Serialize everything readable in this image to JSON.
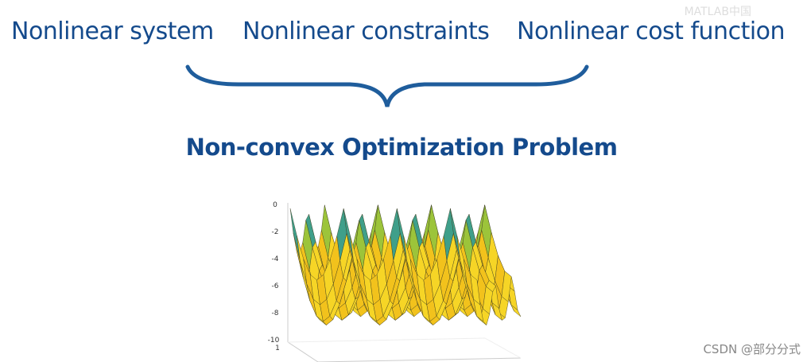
{
  "slide": {
    "terms": [
      "Nonlinear system",
      "Nonlinear constraints",
      "Nonlinear cost function"
    ],
    "title": "Non-convex Optimization Problem",
    "plot": {
      "z_tick_labels": [
        "0",
        "-2",
        "-4",
        "-6",
        "-8",
        "-10"
      ],
      "y_tick_label": "1"
    },
    "watermark_top": "MATLAB中国",
    "watermark_bottom": "CSDN @部分分式"
  }
}
